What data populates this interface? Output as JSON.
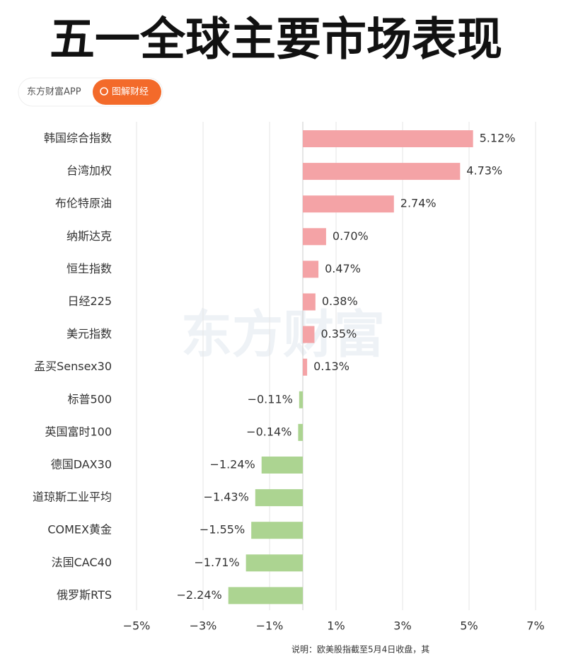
{
  "chart_data": {
    "type": "hbar",
    "title": "五一全球主要市场表现",
    "badge": [
      "东方财富APP",
      "图解财经"
    ],
    "watermark": "东方财富",
    "note": "说明：欧美股指截至5月4日收盘，其",
    "categories": [
      "韩国综合指数",
      "台湾加权",
      "布伦特原油",
      "纳斯达克",
      "恒生指数",
      "日经225",
      "美元指数",
      "孟买Sensex30",
      "标普500",
      "英国富时100",
      "德国DAX30",
      "道琼斯工业平均",
      "COMEX黄金",
      "法国CAC40",
      "俄罗斯RTS"
    ],
    "values": [
      5.12,
      4.73,
      2.74,
      0.7,
      0.47,
      0.38,
      0.35,
      0.13,
      -0.11,
      -0.14,
      -1.24,
      -1.43,
      -1.55,
      -1.71,
      -2.24
    ],
    "value_labels": [
      "5.12%",
      "4.73%",
      "2.74%",
      "0.70%",
      "0.47%",
      "0.38%",
      "0.35%",
      "0.13%",
      "−0.11%",
      "−0.14%",
      "−1.24%",
      "−1.43%",
      "−1.55%",
      "−1.71%",
      "−2.24%"
    ],
    "xlim": [
      -5,
      7
    ],
    "xticks": [
      {
        "value": -5,
        "label": "−5%"
      },
      {
        "value": -3,
        "label": "−3%"
      },
      {
        "value": -1,
        "label": "−1%"
      },
      {
        "value": 1,
        "label": "1%"
      },
      {
        "value": 3,
        "label": "3%"
      },
      {
        "value": 5,
        "label": "5%"
      },
      {
        "value": 7,
        "label": "7%"
      }
    ],
    "grid": true,
    "colors": {
      "positive": "#f4a3a6",
      "negative": "#acd491"
    }
  }
}
